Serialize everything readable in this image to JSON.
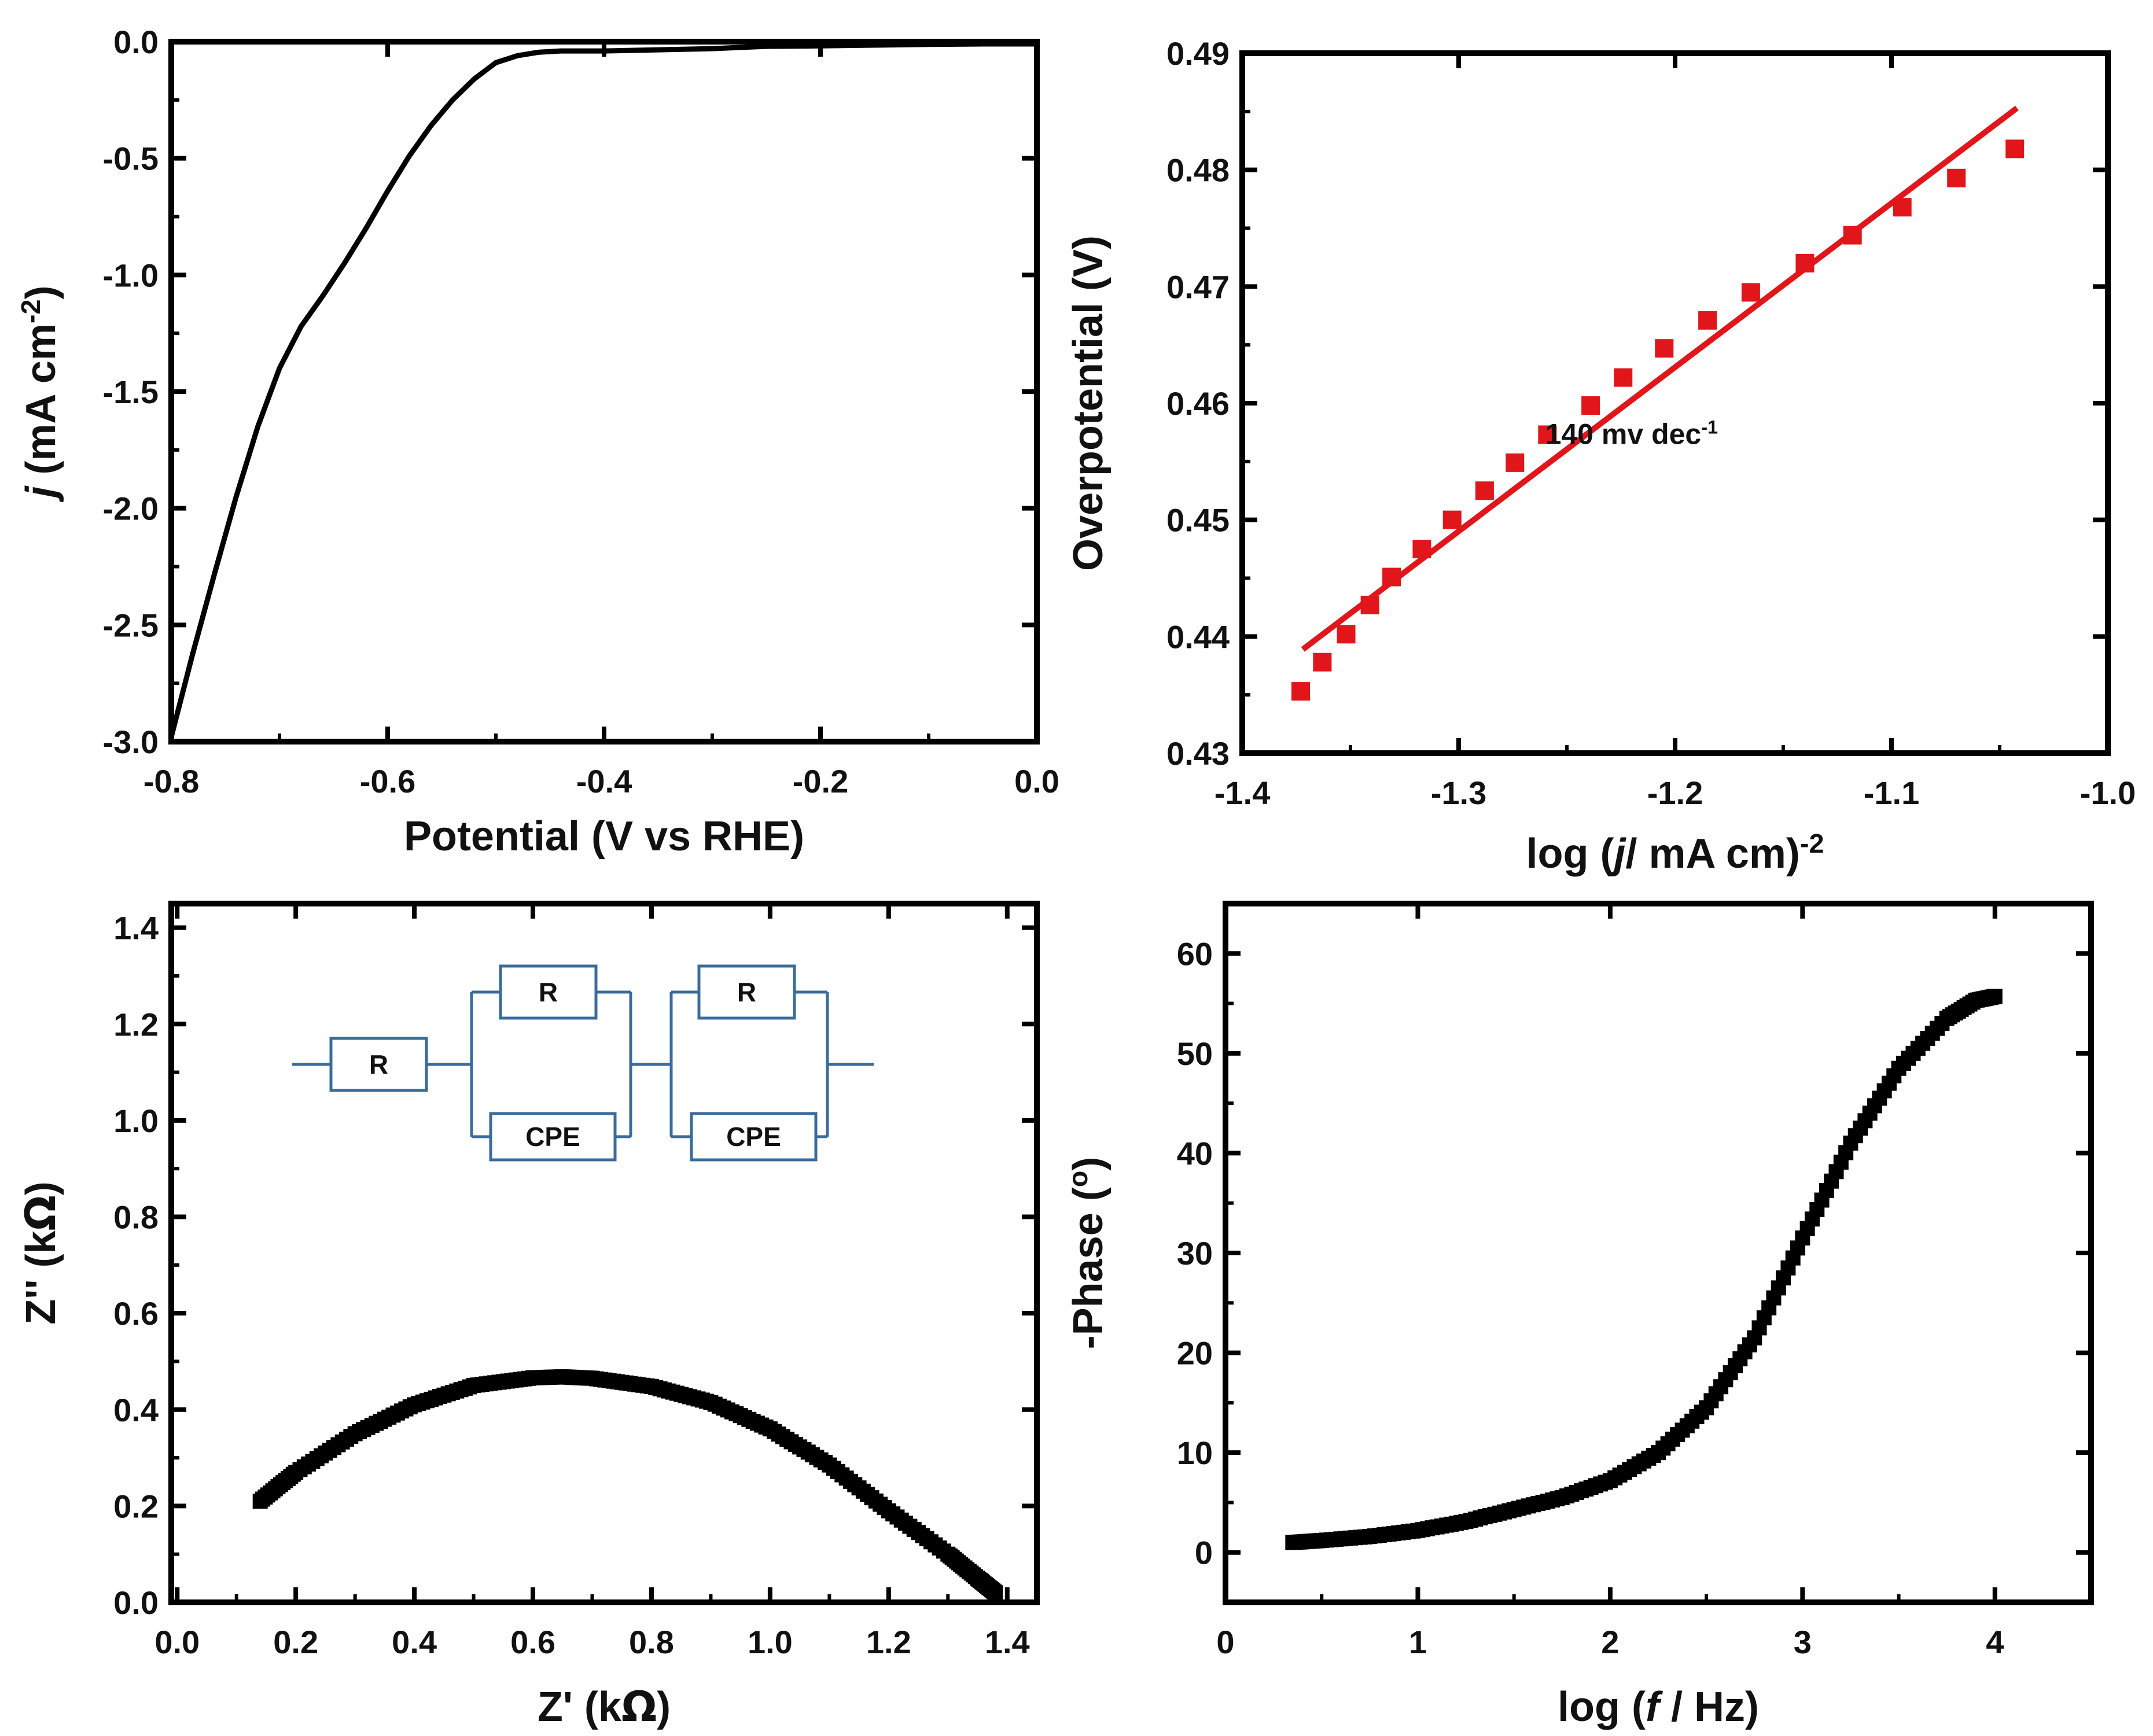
{
  "chart_data": [
    {
      "id": "lsv",
      "type": "line",
      "xlabel": "Potential (V vs RHE)",
      "ylabel_parts": [
        "j",
        " (mA cm",
        "-2",
        ")"
      ],
      "xlim": [
        -0.8,
        0.0
      ],
      "ylim": [
        -3.0,
        0.0
      ],
      "xticks": [
        -0.8,
        -0.6,
        -0.4,
        -0.2,
        0.0
      ],
      "xtick_labels": [
        "-0.8",
        "-0.6",
        "-0.4",
        "-0.2",
        "0.0"
      ],
      "yticks": [
        -3.0,
        -2.5,
        -2.0,
        -1.5,
        -1.0,
        -0.5,
        0.0
      ],
      "ytick_labels": [
        "-3.0",
        "-2.5",
        "-2.0",
        "-1.5",
        "-1.0",
        "-0.5",
        "0.0"
      ],
      "series_color": "#000000",
      "x": [
        -0.8,
        -0.78,
        -0.76,
        -0.74,
        -0.72,
        -0.7,
        -0.68,
        -0.66,
        -0.64,
        -0.62,
        -0.6,
        -0.58,
        -0.56,
        -0.54,
        -0.52,
        -0.5,
        -0.48,
        -0.46,
        -0.44,
        -0.42,
        -0.4,
        -0.35,
        -0.3,
        -0.25,
        -0.2,
        -0.15,
        -0.1,
        -0.05,
        0.0
      ],
      "y": [
        -2.98,
        -2.62,
        -2.28,
        -1.95,
        -1.65,
        -1.4,
        -1.22,
        -1.09,
        -0.95,
        -0.8,
        -0.64,
        -0.49,
        -0.36,
        -0.25,
        -0.16,
        -0.09,
        -0.06,
        -0.045,
        -0.04,
        -0.04,
        -0.04,
        -0.035,
        -0.03,
        -0.02,
        -0.018,
        -0.015,
        -0.012,
        -0.01,
        -0.01
      ]
    },
    {
      "id": "tafel",
      "type": "scatter",
      "xlabel_parts": [
        "log (",
        "j",
        "/ mA cm)",
        "-2"
      ],
      "ylabel": "Overpotential (V)",
      "xlim": [
        -1.4,
        -1.0
      ],
      "ylim": [
        0.43,
        0.49
      ],
      "xticks": [
        -1.4,
        -1.3,
        -1.2,
        -1.1,
        -1.0
      ],
      "xtick_labels": [
        "-1.4",
        "-1.3",
        "-1.2",
        "-1.1",
        "-1.0"
      ],
      "yticks": [
        0.43,
        0.44,
        0.45,
        0.46,
        0.47,
        0.48,
        0.49
      ],
      "ytick_labels": [
        "0.43",
        "0.44",
        "0.45",
        "0.46",
        "0.47",
        "0.48",
        "0.49"
      ],
      "marker_color": "#e0161b",
      "fit_color": "#e0161b",
      "annotation_parts": [
        "140 mv dec",
        "-1"
      ],
      "annotation_pos": [
        -1.26,
        0.4565
      ],
      "x": [
        -1.373,
        -1.363,
        -1.352,
        -1.341,
        -1.331,
        -1.317,
        -1.303,
        -1.288,
        -1.274,
        -1.259,
        -1.239,
        -1.224,
        -1.205,
        -1.185,
        -1.165,
        -1.14,
        -1.118,
        -1.095,
        -1.07,
        -1.043
      ],
      "y": [
        0.4353,
        0.4378,
        0.4402,
        0.4427,
        0.4451,
        0.4475,
        0.45,
        0.4525,
        0.4549,
        0.4573,
        0.4598,
        0.4622,
        0.4647,
        0.4671,
        0.4695,
        0.472,
        0.4744,
        0.4768,
        0.4793,
        0.4818
      ],
      "fit": {
        "x": [
          -1.372,
          -1.042
        ],
        "y": [
          0.4389,
          0.4853
        ]
      }
    },
    {
      "id": "nyquist",
      "type": "scatter",
      "xlabel_parts": [
        "Z' (k",
        "Ω",
        ")"
      ],
      "ylabel_parts": [
        "Z'' (k",
        "Ω",
        ")"
      ],
      "xlim": [
        -0.01,
        1.45
      ],
      "ylim": [
        0.0,
        1.45
      ],
      "xticks": [
        0.0,
        0.2,
        0.4,
        0.6,
        0.8,
        1.0,
        1.2,
        1.4
      ],
      "xtick_labels": [
        "0.0",
        "0.2",
        "0.4",
        "0.6",
        "0.8",
        "1.0",
        "1.2",
        "1.4"
      ],
      "yticks": [
        0.0,
        0.2,
        0.4,
        0.6,
        0.8,
        1.0,
        1.2,
        1.4
      ],
      "ytick_labels": [
        "0.0",
        "0.2",
        "0.4",
        "0.6",
        "0.8",
        "1.0",
        "1.2",
        "1.4"
      ],
      "marker_color": "#000000",
      "curve": {
        "x": [
          0.14,
          0.2,
          0.3,
          0.4,
          0.5,
          0.6,
          0.65,
          0.7,
          0.8,
          0.9,
          1.0,
          1.1,
          1.2,
          1.3,
          1.35,
          1.38
        ],
        "y": [
          0.21,
          0.27,
          0.35,
          0.41,
          0.45,
          0.466,
          0.468,
          0.465,
          0.448,
          0.415,
          0.36,
          0.285,
          0.19,
          0.1,
          0.05,
          0.02
        ]
      },
      "inset": {
        "type": "circuit",
        "components": [
          "R",
          "R",
          "CPE",
          "R",
          "CPE"
        ],
        "line_color": "#3a6b9a"
      }
    },
    {
      "id": "bode",
      "type": "scatter",
      "xlabel_parts": [
        "log (",
        "f",
        " / Hz)"
      ],
      "ylabel_parts": [
        "-Phase (",
        "o",
        ")"
      ],
      "xlim": [
        0.0,
        4.5
      ],
      "ylim": [
        -5.0,
        65.0
      ],
      "xticks": [
        0,
        1,
        2,
        3,
        4
      ],
      "xtick_labels": [
        "0",
        "1",
        "2",
        "3",
        "4"
      ],
      "yticks": [
        0,
        10,
        20,
        30,
        40,
        50,
        60
      ],
      "ytick_labels": [
        "0",
        "10",
        "20",
        "30",
        "40",
        "50",
        "60"
      ],
      "marker_color": "#000000",
      "curve": {
        "x": [
          0.35,
          0.5,
          0.75,
          1.0,
          1.25,
          1.5,
          1.75,
          2.0,
          2.25,
          2.5,
          2.75,
          3.0,
          3.25,
          3.5,
          3.75,
          3.9,
          4.0
        ],
        "y": [
          1.0,
          1.2,
          1.6,
          2.2,
          3.1,
          4.3,
          5.5,
          7.2,
          10.0,
          14.5,
          21.5,
          31.5,
          41.0,
          48.5,
          53.5,
          55.3,
          55.7
        ]
      }
    }
  ]
}
